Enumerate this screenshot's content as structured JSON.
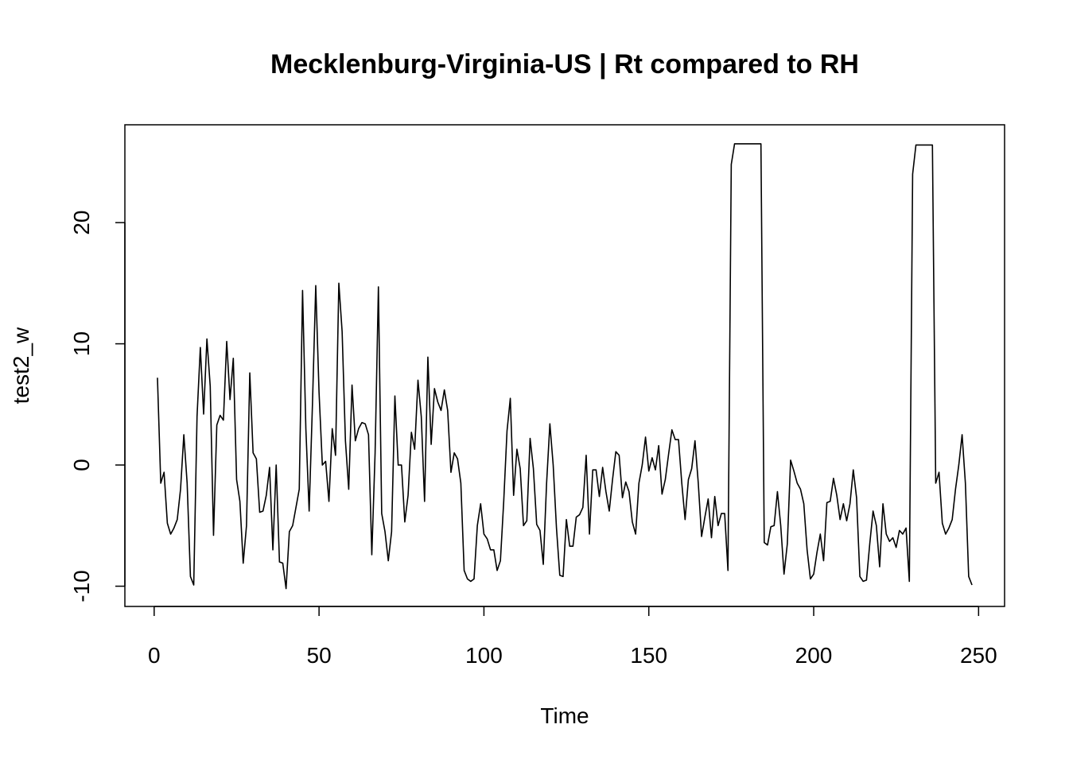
{
  "chart_data": {
    "type": "line",
    "title": "Mecklenburg-Virginia-US | Rt compared to RH",
    "x_label": "Time",
    "y_label": "test2_w",
    "x": [
      1,
      2,
      3,
      4,
      5,
      6,
      7,
      8,
      9,
      10,
      11,
      12,
      13,
      14,
      15,
      16,
      17,
      18,
      19,
      20,
      21,
      22,
      23,
      24,
      25,
      26,
      27,
      28,
      29,
      30,
      31,
      32,
      33,
      34,
      35,
      36,
      37,
      38,
      39,
      40,
      41,
      42,
      43,
      44,
      45,
      46,
      47,
      48,
      49,
      50,
      51,
      52,
      53,
      54,
      55,
      56,
      57,
      58,
      59,
      60,
      61,
      62,
      63,
      64,
      65,
      66,
      67,
      68,
      69,
      70,
      71,
      72,
      73,
      74,
      75,
      76,
      77,
      78,
      79,
      80,
      81,
      82,
      83,
      84,
      85,
      86,
      87,
      88,
      89,
      90,
      91,
      92,
      93,
      94,
      95,
      96,
      97,
      98,
      99,
      100,
      101,
      102,
      103,
      104,
      105,
      106,
      107,
      108,
      109,
      110,
      111,
      112,
      113,
      114,
      115,
      116,
      117,
      118,
      119,
      120,
      121,
      122,
      123,
      124,
      125,
      126,
      127,
      128,
      129,
      130,
      131,
      132,
      133,
      134,
      135,
      136,
      137,
      138,
      139,
      140,
      141,
      142,
      143,
      144,
      145,
      146,
      147,
      148,
      149,
      150,
      151,
      152,
      153,
      154,
      155,
      156,
      157,
      158,
      159,
      160,
      161,
      162,
      163,
      164,
      165,
      166,
      167,
      168,
      169,
      170,
      171,
      172,
      173,
      174,
      175,
      176,
      177,
      178,
      179,
      180,
      181,
      182,
      183,
      184,
      185,
      186,
      187,
      188,
      189,
      190,
      191,
      192,
      193,
      194,
      195,
      196,
      197,
      198,
      199,
      200,
      201,
      202,
      203,
      204,
      205,
      206,
      207,
      208,
      209,
      210,
      211,
      212,
      213,
      214,
      215,
      216,
      217,
      218,
      219,
      220,
      221,
      222,
      223,
      224,
      225,
      226,
      227,
      228,
      229,
      230,
      231,
      232,
      233,
      234,
      235,
      236,
      237,
      238,
      239,
      240,
      241,
      242,
      243,
      244,
      245,
      246,
      247,
      248
    ],
    "series": [
      {
        "color": "#000000",
        "values": [
          7.2,
          -1.5,
          -0.6,
          -4.8,
          -5.7,
          -5.2,
          -4.5,
          -2,
          2.5,
          -1.5,
          -9.2,
          -9.9,
          4,
          9.7,
          4.2,
          10.4,
          6.5,
          -5.8,
          3.3,
          4.1,
          3.7,
          10.2,
          5.4,
          8.8,
          -1.2,
          -3,
          -8.1,
          -5,
          7.6,
          1,
          0.5,
          -3.9,
          -3.8,
          -2.5,
          -0.2,
          -7,
          0,
          -8,
          -8.1,
          -10.2,
          -5.5,
          -5,
          -3.5,
          -2,
          14.4,
          3,
          -3.8,
          5,
          14.8,
          6,
          0,
          0.3,
          -3,
          3,
          0.8,
          15,
          11,
          2,
          -2,
          6.6,
          2,
          3,
          3.5,
          3.4,
          2.5,
          -7.4,
          1,
          14.7,
          -4,
          -5.5,
          -7.9,
          -5.5,
          5.7,
          0,
          0,
          -4.7,
          -2.5,
          2.7,
          1.3,
          7,
          4,
          -3,
          8.9,
          1.7,
          6.3,
          5.2,
          4.5,
          6.2,
          4.5,
          -0.6,
          1,
          0.5,
          -1.5,
          -8.7,
          -9.4,
          -9.6,
          -9.4,
          -5,
          -3.2,
          -5.7,
          -6.1,
          -7,
          -7,
          -8.7,
          -7.9,
          -3,
          2.8,
          5.5,
          -2.5,
          1.3,
          -0.3,
          -5,
          -4.6,
          2.2,
          -0.3,
          -4.9,
          -5.4,
          -8.2,
          -1.5,
          3.4,
          0,
          -5.2,
          -9.1,
          -9.2,
          -4.5,
          -6.7,
          -6.7,
          -4.3,
          -4.1,
          -3.5,
          0.8,
          -5.7,
          -0.4,
          -0.4,
          -2.6,
          -0.2,
          -2.2,
          -3.8,
          -1.2,
          1.1,
          0.8,
          -2.7,
          -1.4,
          -2.2,
          -4.7,
          -5.7,
          -1.5,
          0,
          2.3,
          -0.5,
          0.6,
          -0.4,
          1.6,
          -2.4,
          -1.2,
          0.9,
          2.9,
          2.1,
          2.1,
          -1.5,
          -4.5,
          -1.2,
          -0.3,
          2,
          -1.5,
          -5.9,
          -4.3,
          -2.8,
          -6,
          -2.6,
          -5,
          -4,
          -4,
          -8.7,
          24.8,
          26.5,
          26.5,
          26.5,
          26.5,
          26.5,
          26.5,
          26.5,
          26.5,
          26.5,
          -6.4,
          -6.6,
          -5.1,
          -5,
          -2.2,
          -5,
          -9,
          -6.5,
          0.4,
          -0.5,
          -1.5,
          -2,
          -3.2,
          -7,
          -9.4,
          -9,
          -7.2,
          -5.7,
          -7.9,
          -3.1,
          -3,
          -1.1,
          -2.5,
          -4.5,
          -3.2,
          -4.6,
          -3.2,
          -0.4,
          -2.7,
          -9.2,
          -9.6,
          -9.5,
          -6.5,
          -3.8,
          -5,
          -8.4,
          -3.2,
          -5.7,
          -6.3,
          -6,
          -6.8,
          -5.4,
          -5.7,
          -5.2,
          -9.6,
          24,
          26.4,
          26.4,
          26.4,
          26.4,
          26.4,
          26.4,
          -1.5,
          -0.6,
          -4.8,
          -5.7,
          -5.2,
          -4.5,
          -2,
          0,
          2.5,
          -1.5,
          -9.2,
          -9.9
        ]
      }
    ],
    "xlim": [
      -8.88,
      257.88
    ],
    "ylim": [
      -11.67,
      28.07
    ],
    "xticks": [
      0,
      50,
      100,
      150,
      200,
      250
    ],
    "yticks": [
      -10,
      0,
      10,
      20
    ],
    "grid": false
  }
}
